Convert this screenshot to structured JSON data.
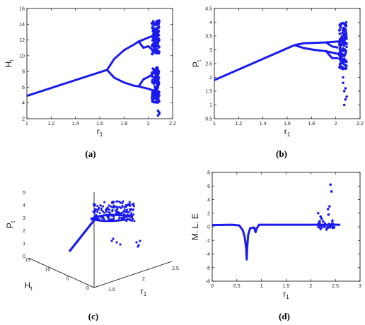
{
  "colors": {
    "series": "#1a1aee",
    "axis": "#000000",
    "text": "#222222"
  },
  "chart_data": [
    {
      "id": "a",
      "type": "scatter",
      "panel_label": "(a)",
      "xlabel": "r",
      "xlabel_sub": "1",
      "ylabel": "H",
      "ylabel_sub": "t",
      "xlim": [
        1,
        2.2
      ],
      "ylim": [
        2,
        16
      ],
      "xticks": [
        "1",
        "1.2",
        "1.4",
        "1.6",
        "1.8",
        "2",
        "2.2"
      ],
      "yticks": [
        "2",
        "4",
        "6",
        "8",
        "10",
        "12",
        "14",
        "16"
      ],
      "series": [
        {
          "values": [
            [
              1.0,
              4.9
            ],
            [
              1.66,
              8.2
            ]
          ],
          "kind": "line"
        },
        {
          "values": [
            [
              1.66,
              8.2
            ],
            [
              1.72,
              9.6
            ],
            [
              1.8,
              10.7
            ],
            [
              1.88,
              11.4
            ],
            [
              1.92,
              11.8
            ],
            [
              2.0,
              12.3
            ],
            [
              2.08,
              12.8
            ]
          ],
          "kind": "line"
        },
        {
          "values": [
            [
              1.66,
              8.2
            ],
            [
              1.72,
              7.2
            ],
            [
              1.8,
              6.6
            ],
            [
              1.88,
              6.2
            ],
            [
              1.92,
              6.1
            ],
            [
              2.0,
              5.8
            ],
            [
              2.08,
              5.4
            ]
          ],
          "kind": "line"
        },
        {
          "values": [
            [
              1.92,
              11.8
            ],
            [
              1.96,
              11.0
            ],
            [
              2.0,
              11.2
            ],
            [
              2.03,
              10.8
            ],
            [
              2.05,
              10.4
            ]
          ],
          "kind": "line"
        },
        {
          "values": [
            [
              1.92,
              6.1
            ],
            [
              1.96,
              7.0
            ],
            [
              2.0,
              7.3
            ],
            [
              2.03,
              7.6
            ],
            [
              2.05,
              7.9
            ]
          ],
          "kind": "line"
        }
      ],
      "chaos": {
        "x_range": [
          2.03,
          2.09
        ],
        "y_ranges": [
          [
            10.2,
            14.5
          ],
          [
            4.0,
            8.6
          ]
        ],
        "extra": [
          [
            2.08,
            2.4
          ],
          [
            2.09,
            2.8
          ],
          [
            2.08,
            3.0
          ],
          [
            2.09,
            2.6
          ],
          [
            2.07,
            14.4
          ]
        ]
      }
    },
    {
      "id": "b",
      "type": "scatter",
      "panel_label": "(b)",
      "xlabel": "r",
      "xlabel_sub": "1",
      "ylabel": "P",
      "ylabel_sub": "t",
      "xlim": [
        1,
        2.2
      ],
      "ylim": [
        0.5,
        4.5
      ],
      "xticks": [
        "1",
        "1.2",
        "1.4",
        "1.6",
        "1.8",
        "2",
        "2.2"
      ],
      "yticks": [
        "0.5",
        "1",
        "1.5",
        "2",
        "2.5",
        "3",
        "3.5",
        "4",
        "4.5"
      ],
      "series": [
        {
          "values": [
            [
              1.0,
              1.9
            ],
            [
              1.66,
              3.17
            ]
          ],
          "kind": "line"
        },
        {
          "values": [
            [
              1.66,
              3.17
            ],
            [
              1.74,
              3.24
            ],
            [
              1.82,
              3.25
            ],
            [
              1.92,
              3.27
            ],
            [
              2.02,
              3.3
            ],
            [
              2.08,
              3.32
            ]
          ],
          "kind": "line"
        },
        {
          "values": [
            [
              1.66,
              3.17
            ],
            [
              1.74,
              3.06
            ],
            [
              1.82,
              3.0
            ],
            [
              1.92,
              2.95
            ],
            [
              2.02,
              2.85
            ],
            [
              2.08,
              2.8
            ]
          ],
          "kind": "line"
        },
        {
          "values": [
            [
              1.92,
              3.27
            ],
            [
              1.97,
              3.12
            ],
            [
              2.02,
              3.08
            ]
          ],
          "kind": "line"
        },
        {
          "values": [
            [
              1.92,
              2.95
            ],
            [
              1.97,
              2.7
            ],
            [
              2.02,
              2.7
            ]
          ],
          "kind": "line"
        }
      ],
      "chaos": {
        "x_range": [
          2.03,
          2.09
        ],
        "y_ranges": [
          [
            2.3,
            4.0
          ]
        ],
        "extra": [
          [
            2.06,
            1.8
          ],
          [
            2.07,
            1.5
          ],
          [
            2.08,
            1.2
          ],
          [
            2.07,
            1.0
          ],
          [
            2.08,
            1.6
          ],
          [
            2.06,
            2.0
          ],
          [
            2.09,
            1.3
          ]
        ]
      }
    },
    {
      "id": "c",
      "type": "scatter",
      "panel_label": "(c)",
      "xlabel": "r",
      "xlabel_sub": "1",
      "ylabel": "H",
      "ylabel_sub": "t",
      "zlabel": "P",
      "zlabel_sub": "t",
      "x_ticks": [
        "1.5",
        "2",
        "2.5"
      ],
      "y_ticks": [
        "0",
        "5",
        "10",
        "15"
      ],
      "z_ticks": [
        "0",
        "1",
        "2",
        "3",
        "4",
        "5"
      ],
      "view": "3d"
    },
    {
      "id": "d",
      "type": "scatter",
      "panel_label": "(d)",
      "xlabel": "r",
      "xlabel_sub": "1",
      "ylabel": "M. L. E",
      "xlim": [
        0,
        3
      ],
      "ylim": [
        -8,
        8
      ],
      "xticks": [
        "0",
        "0.5",
        "1",
        "1.5",
        "2",
        "2.5",
        "3"
      ],
      "yticks": [
        "-8",
        "-6",
        "-4",
        "-2",
        "0",
        "2",
        "4",
        "6",
        "8"
      ],
      "series": [
        {
          "values": [
            [
              0.0,
              0.25
            ],
            [
              0.4,
              0.3
            ],
            [
              0.55,
              0.2
            ],
            [
              0.62,
              -0.5
            ],
            [
              0.66,
              -1.5
            ],
            [
              0.69,
              -3.2
            ],
            [
              0.7,
              -4.8
            ],
            [
              0.71,
              -3.0
            ],
            [
              0.73,
              -1.2
            ],
            [
              0.77,
              -0.2
            ],
            [
              0.85,
              -0.1
            ],
            [
              0.88,
              -0.8
            ],
            [
              0.9,
              -0.3
            ],
            [
              0.95,
              0.3
            ],
            [
              2.6,
              0.3
            ]
          ],
          "kind": "line"
        }
      ],
      "scatter_points": [
        [
          2.15,
          2.0
        ],
        [
          2.2,
          1.5
        ],
        [
          2.18,
          0.8
        ],
        [
          2.22,
          1.2
        ],
        [
          2.38,
          3.0
        ],
        [
          2.4,
          6.2
        ],
        [
          2.42,
          5.2
        ],
        [
          2.36,
          1.8
        ],
        [
          2.35,
          2.6
        ],
        [
          2.2,
          -0.3
        ],
        [
          2.25,
          0.8
        ],
        [
          2.32,
          -0.4
        ],
        [
          2.44,
          0.9
        ],
        [
          2.17,
          0.6
        ]
      ]
    }
  ]
}
